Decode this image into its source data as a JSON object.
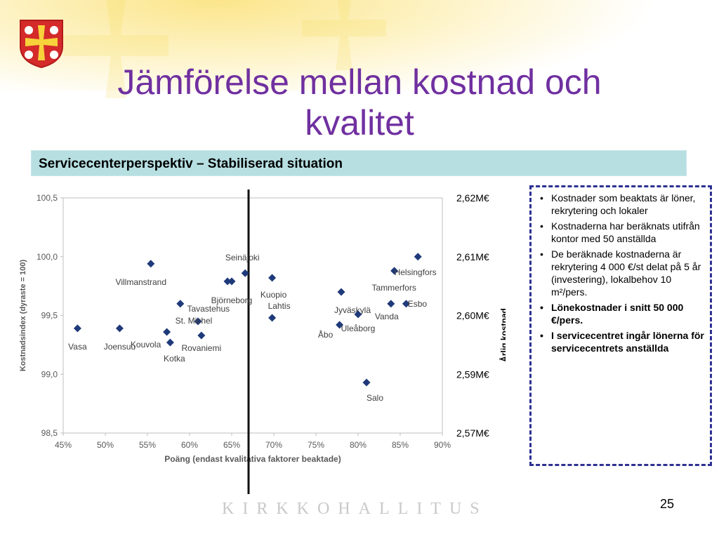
{
  "slide": {
    "title_line1": "Jämförelse mellan kostnad och",
    "title_line2": "kvalitet",
    "subtitle": "Servicecenterperspektiv – Stabiliserad situation",
    "footer": "KIRKKOHALLITUS",
    "page_number": "25",
    "colors": {
      "title": "#7030a0",
      "band": "#b7dfe2",
      "marker": "#1f3a7a",
      "notes_border": "#2e3192"
    }
  },
  "notes": {
    "items": [
      {
        "text": "Kostnader som beaktats är löner, rekrytering och lokaler",
        "bold": false
      },
      {
        "text": "Kostnaderna har beräknats utifrån kontor med 50 anställda",
        "bold": false
      },
      {
        "text": "De beräknade kostnaderna är rekrytering 4 000 €/st delat på 5 år (investering), lokalbehov 10 m²/pers.",
        "bold": false
      },
      {
        "text": "Lönekostnader i snitt 50 000 €/pers.",
        "bold": true
      },
      {
        "text": "I servicecentret ingår lönerna för servicecentrets anställda",
        "bold": true
      }
    ]
  },
  "chart_data": {
    "type": "scatter",
    "xlabel": "Poäng (endast kvalitativa faktorer beaktade)",
    "ylabel": "Kostnadsindex (dyraste = 100)",
    "y2label": "Årlig kostnad",
    "xlim": [
      0.45,
      0.9
    ],
    "ylim": [
      98.5,
      100.5
    ],
    "x_ticks": [
      "45%",
      "50%",
      "55%",
      "60%",
      "65%",
      "70%",
      "75%",
      "80%",
      "85%",
      "90%"
    ],
    "y_ticks": [
      "98,5",
      "99,0",
      "99,5",
      "100,0",
      "100,5"
    ],
    "y2_ticks": [
      "2,57M€",
      "2,59M€",
      "2,60M€",
      "2,61M€",
      "2,62M€"
    ],
    "vline_x": 0.67,
    "grid": false,
    "points": [
      {
        "x": 0.467,
        "y": 99.39,
        "label": "Vasa"
      },
      {
        "x": 0.517,
        "y": 99.39,
        "label": "Joensuu"
      },
      {
        "x": 0.554,
        "y": 99.94,
        "label": "Villmanstrand"
      },
      {
        "x": 0.573,
        "y": 99.36,
        "label": "Kouvola"
      },
      {
        "x": 0.577,
        "y": 99.27,
        "label": "Kotka"
      },
      {
        "x": 0.589,
        "y": 99.6,
        "label": "Tavastehus"
      },
      {
        "x": 0.61,
        "y": 99.45,
        "label": "St. Michel"
      },
      {
        "x": 0.614,
        "y": 99.33,
        "label": "Rovaniemi"
      },
      {
        "x": 0.645,
        "y": 99.79,
        "label": ""
      },
      {
        "x": 0.65,
        "y": 99.79,
        "label": "Björneborg"
      },
      {
        "x": 0.666,
        "y": 99.86,
        "label": "Seinäjoki"
      },
      {
        "x": 0.698,
        "y": 99.82,
        "label": "Kuopio"
      },
      {
        "x": 0.698,
        "y": 99.48,
        "label": "Lahtis"
      },
      {
        "x": 0.778,
        "y": 99.42,
        "label": "Åbo"
      },
      {
        "x": 0.78,
        "y": 99.7,
        "label": "Jyväskylä"
      },
      {
        "x": 0.8,
        "y": 99.51,
        "label": "Uleåborg"
      },
      {
        "x": 0.81,
        "y": 98.93,
        "label": "Salo"
      },
      {
        "x": 0.839,
        "y": 99.6,
        "label": "Vanda"
      },
      {
        "x": 0.843,
        "y": 99.88,
        "label": "Helsingfors"
      },
      {
        "x": 0.857,
        "y": 99.6,
        "label": "Esbo"
      },
      {
        "x": 0.871,
        "y": 100.0,
        "label": "Tammerfors"
      }
    ]
  }
}
